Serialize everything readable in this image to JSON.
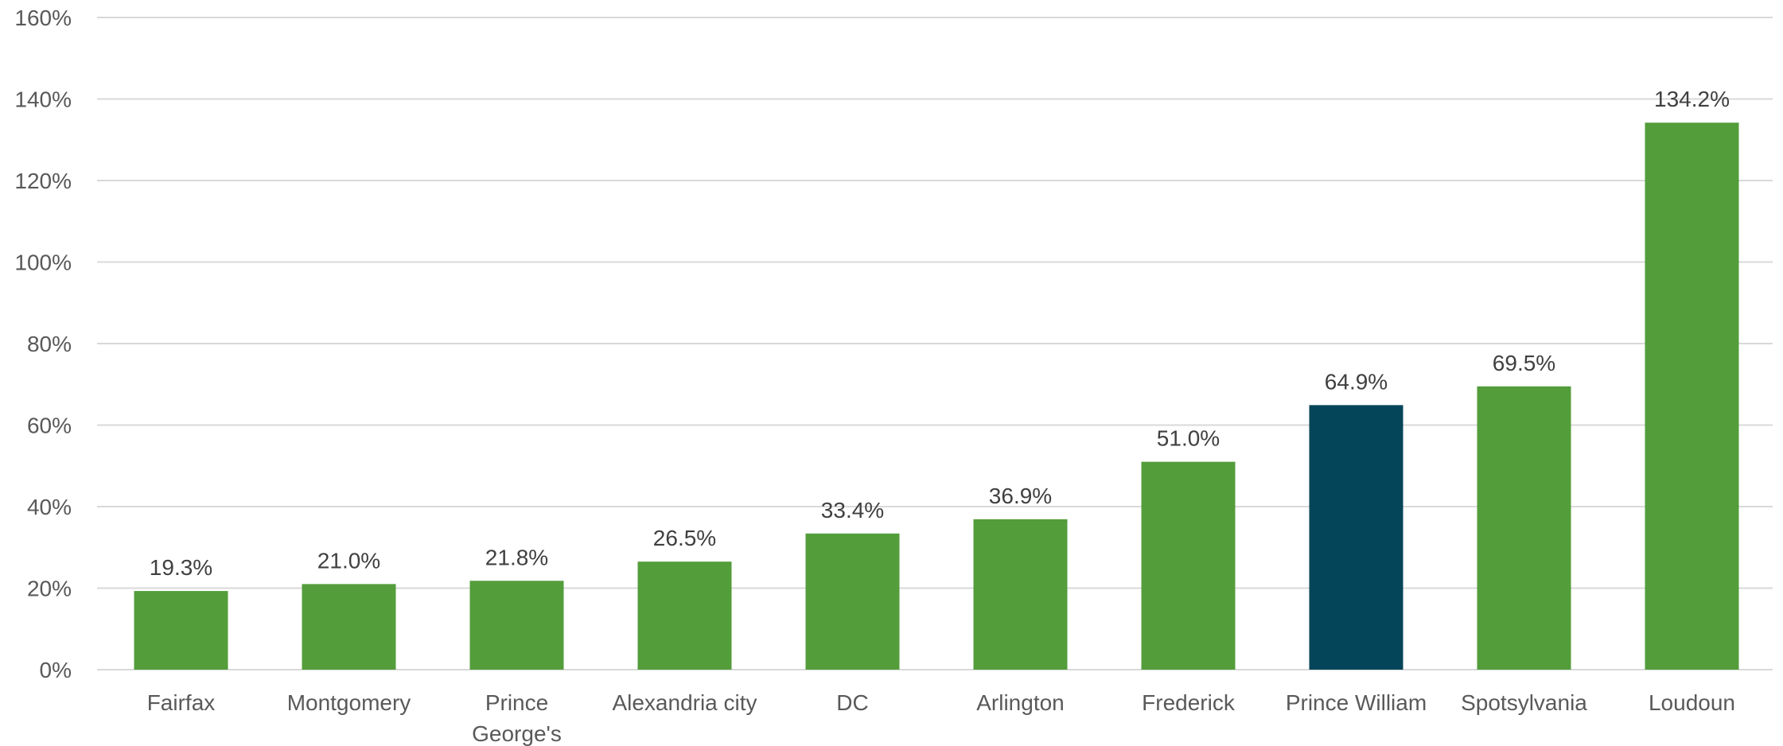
{
  "chart_data": {
    "type": "bar",
    "title": "",
    "xlabel": "",
    "ylabel": "",
    "categories": [
      "Fairfax",
      "Montgomery",
      "Prince George's",
      "Alexandria city",
      "DC",
      "Arlington",
      "Frederick",
      "Prince William",
      "Spotsylvania",
      "Loudoun"
    ],
    "values": [
      19.3,
      21.0,
      21.8,
      26.5,
      33.4,
      36.9,
      51.0,
      64.9,
      69.5,
      134.2
    ],
    "data_labels": [
      "19.3%",
      "21.0%",
      "21.8%",
      "26.5%",
      "33.4%",
      "36.9%",
      "51.0%",
      "64.9%",
      "69.5%",
      "134.2%"
    ],
    "y_ticks": [
      0,
      20,
      40,
      60,
      80,
      100,
      120,
      140,
      160
    ],
    "y_tick_labels": [
      "0%",
      "20%",
      "40%",
      "60%",
      "80%",
      "100%",
      "120%",
      "140%",
      "160%"
    ],
    "ylim": [
      0,
      160
    ],
    "grid": true,
    "legend": "none",
    "colors": {
      "default_bar": "#539d3b",
      "highlight_bar": "#04455a",
      "gridline": "#d9d9d9"
    },
    "highlight_category": "Prince William"
  }
}
